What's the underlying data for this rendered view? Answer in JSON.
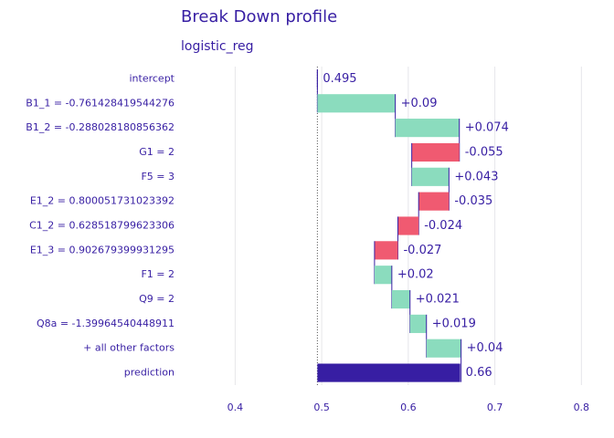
{
  "chart_data": {
    "type": "waterfall",
    "title": "Break Down profile",
    "subtitle": "logistic_reg",
    "categories": [
      "intercept",
      "B1_1 = -0.761428419544276",
      "B1_2 = -0.288028180856362",
      "G1 = 2",
      "F5 = 3",
      "E1_2 = 0.800051731023392",
      "C1_2 = 0.628518799623306",
      "E1_3 = 0.902679399931295",
      "F1 = 2",
      "Q9 = 2",
      "Q8a = -1.39964540448911",
      "+ all other factors",
      "prediction"
    ],
    "values": [
      0.495,
      0.09,
      0.074,
      -0.055,
      0.043,
      -0.035,
      -0.024,
      -0.027,
      0.02,
      0.021,
      0.019,
      0.04,
      0.66
    ],
    "value_labels": [
      "0.495",
      "+0.09",
      "+0.074",
      "-0.055",
      "+0.043",
      "-0.035",
      "-0.024",
      "-0.027",
      "+0.02",
      "+0.021",
      "+0.019",
      "+0.04",
      "0.66"
    ],
    "colors": {
      "positive": "#8bdcbe",
      "negative": "#f05a71",
      "prediction": "#371ea3"
    },
    "xlim": [
      0.35,
      0.825
    ],
    "xticks": [
      0.4,
      0.5,
      0.6,
      0.7,
      0.8
    ],
    "grid": true
  }
}
